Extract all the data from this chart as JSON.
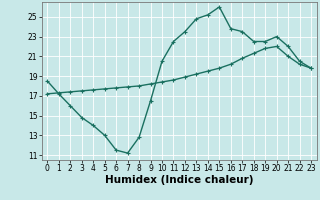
{
  "xlabel": "Humidex (Indice chaleur)",
  "background_color": "#c8e8e8",
  "grid_color": "#ffffff",
  "line_color": "#1a7060",
  "xlim": [
    -0.5,
    23.5
  ],
  "ylim": [
    10.5,
    26.5
  ],
  "yticks": [
    11,
    13,
    15,
    17,
    19,
    21,
    23,
    25
  ],
  "xticks": [
    0,
    1,
    2,
    3,
    4,
    5,
    6,
    7,
    8,
    9,
    10,
    11,
    12,
    13,
    14,
    15,
    16,
    17,
    18,
    19,
    20,
    21,
    22,
    23
  ],
  "line1_x": [
    0,
    1,
    2,
    3,
    4,
    5,
    6,
    7,
    8,
    9,
    10,
    11,
    12,
    13,
    14,
    15,
    16,
    17,
    18,
    19,
    20,
    21,
    22,
    23
  ],
  "line1_y": [
    18.5,
    17.2,
    16.0,
    14.8,
    14.0,
    13.0,
    11.5,
    11.2,
    12.8,
    16.5,
    20.5,
    22.5,
    23.5,
    24.8,
    25.2,
    26.0,
    23.8,
    23.5,
    22.5,
    22.5,
    23.0,
    22.0,
    20.5,
    19.8
  ],
  "line2_x": [
    0,
    1,
    2,
    3,
    4,
    5,
    6,
    7,
    8,
    9,
    10,
    11,
    12,
    13,
    14,
    15,
    16,
    17,
    18,
    19,
    20,
    21,
    22,
    23
  ],
  "line2_y": [
    17.2,
    17.3,
    17.4,
    17.5,
    17.6,
    17.7,
    17.8,
    17.9,
    18.0,
    18.2,
    18.4,
    18.6,
    18.9,
    19.2,
    19.5,
    19.8,
    20.2,
    20.8,
    21.3,
    21.8,
    22.0,
    21.0,
    20.2,
    19.8
  ],
  "marker": "+",
  "marker_size": 3,
  "linewidth": 1.0,
  "tick_labelsize": 5.5,
  "xlabel_fontsize": 7.5
}
